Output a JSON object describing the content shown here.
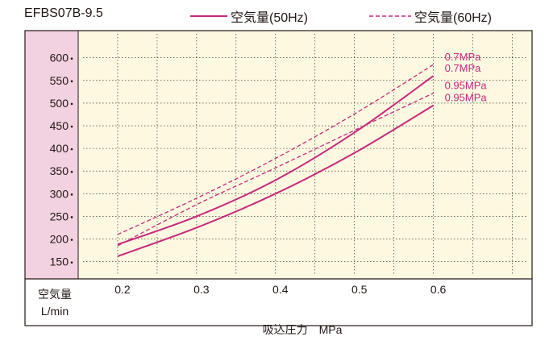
{
  "model_label": "EFBS07B-9.5",
  "legend": {
    "solid_label": "空気量(50Hz)",
    "dashed_label": "空気量(60Hz)"
  },
  "colors": {
    "series": "#c8287e",
    "plot_bg": "#fdf8e0",
    "yaxis_bg": "#f2d2e0",
    "frame": "#231815",
    "grid": "#231815"
  },
  "chart_data": {
    "type": "line",
    "xlabel": "吸込圧力　MPa",
    "ylabel": "空気量",
    "yunit": "L/min",
    "xlim": [
      0.15,
      0.725
    ],
    "ylim": [
      112,
      660
    ],
    "xticks": [
      0.2,
      0.3,
      0.4,
      0.5,
      0.6
    ],
    "xtick_labels": [
      "0.2",
      "0.3",
      "0.4",
      "0.5",
      "0.6"
    ],
    "yticks": [
      150,
      200,
      250,
      300,
      350,
      400,
      450,
      500,
      550,
      600
    ],
    "ytick_labels": [
      "150",
      "200",
      "250",
      "300",
      "350",
      "400",
      "450",
      "500",
      "550",
      "600"
    ],
    "grid": true,
    "legend_position": "top",
    "series": [
      {
        "frequency": "60Hz",
        "pressure_label": "0.7MPa",
        "style": "dashed",
        "x": [
          0.2,
          0.3,
          0.4,
          0.5,
          0.6
        ],
        "y": [
          210,
          290,
          378,
          476,
          585
        ]
      },
      {
        "frequency": "50Hz",
        "pressure_label": "0.7MPa",
        "style": "solid",
        "x": [
          0.2,
          0.3,
          0.4,
          0.5,
          0.6
        ],
        "y": [
          188,
          250,
          330,
          435,
          560
        ]
      },
      {
        "frequency": "60Hz",
        "pressure_label": "0.95MPa",
        "style": "dashed",
        "x": [
          0.2,
          0.3,
          0.4,
          0.5,
          0.6
        ],
        "y": [
          185,
          276,
          357,
          440,
          522
        ]
      },
      {
        "frequency": "50Hz",
        "pressure_label": "0.95MPa",
        "style": "solid",
        "x": [
          0.2,
          0.3,
          0.4,
          0.5,
          0.6
        ],
        "y": [
          162,
          225,
          300,
          390,
          495
        ]
      }
    ]
  }
}
